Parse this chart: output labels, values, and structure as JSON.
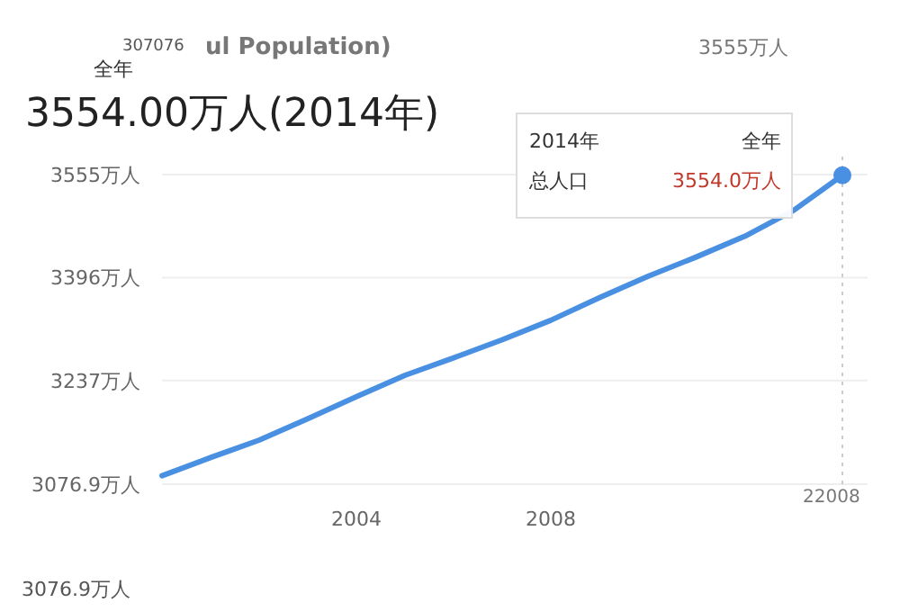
{
  "chart_data": {
    "type": "line",
    "title": "3554.00万人(2014年)",
    "x": [
      2000,
      2001,
      2002,
      2003,
      2004,
      2005,
      2006,
      2007,
      2008,
      2009,
      2010,
      2011,
      2012,
      2013,
      2014
    ],
    "series": [
      {
        "color": "#4a90e2",
        "values": [
          3090,
          3118,
          3145,
          3178,
          3212,
          3245,
          3272,
          3300,
          3330,
          3365,
          3398,
          3428,
          3460,
          3500,
          3554
        ]
      },
      {
        "type": "scatter",
        "color": "#4a90e2",
        "x": [
          2014
        ],
        "values": [
          3554
        ]
      }
    ],
    "xlim": [
      2000,
      2014
    ],
    "xticks": [
      2004,
      2008
    ],
    "ylim": [
      3076.9,
      3555
    ],
    "yticks": [
      {
        "value": 3076.9,
        "label": "3076.9万人"
      },
      {
        "value": 3237,
        "label": "3237万人"
      },
      {
        "value": 3396,
        "label": "3396万人"
      },
      {
        "value": 3555,
        "label": "3555万人"
      }
    ],
    "grid": "y",
    "line_style": "solid",
    "ref_lines": [
      {
        "axis": "x",
        "value": 2014,
        "color": "#cccccc",
        "line_style": "dotted"
      }
    ],
    "annotations": [
      "全年",
      "307076",
      "ul Population)",
      "3555万人",
      "3076.9万人",
      "2014年",
      "全年",
      "总人口",
      "3554.0万人",
      "22008"
    ]
  }
}
